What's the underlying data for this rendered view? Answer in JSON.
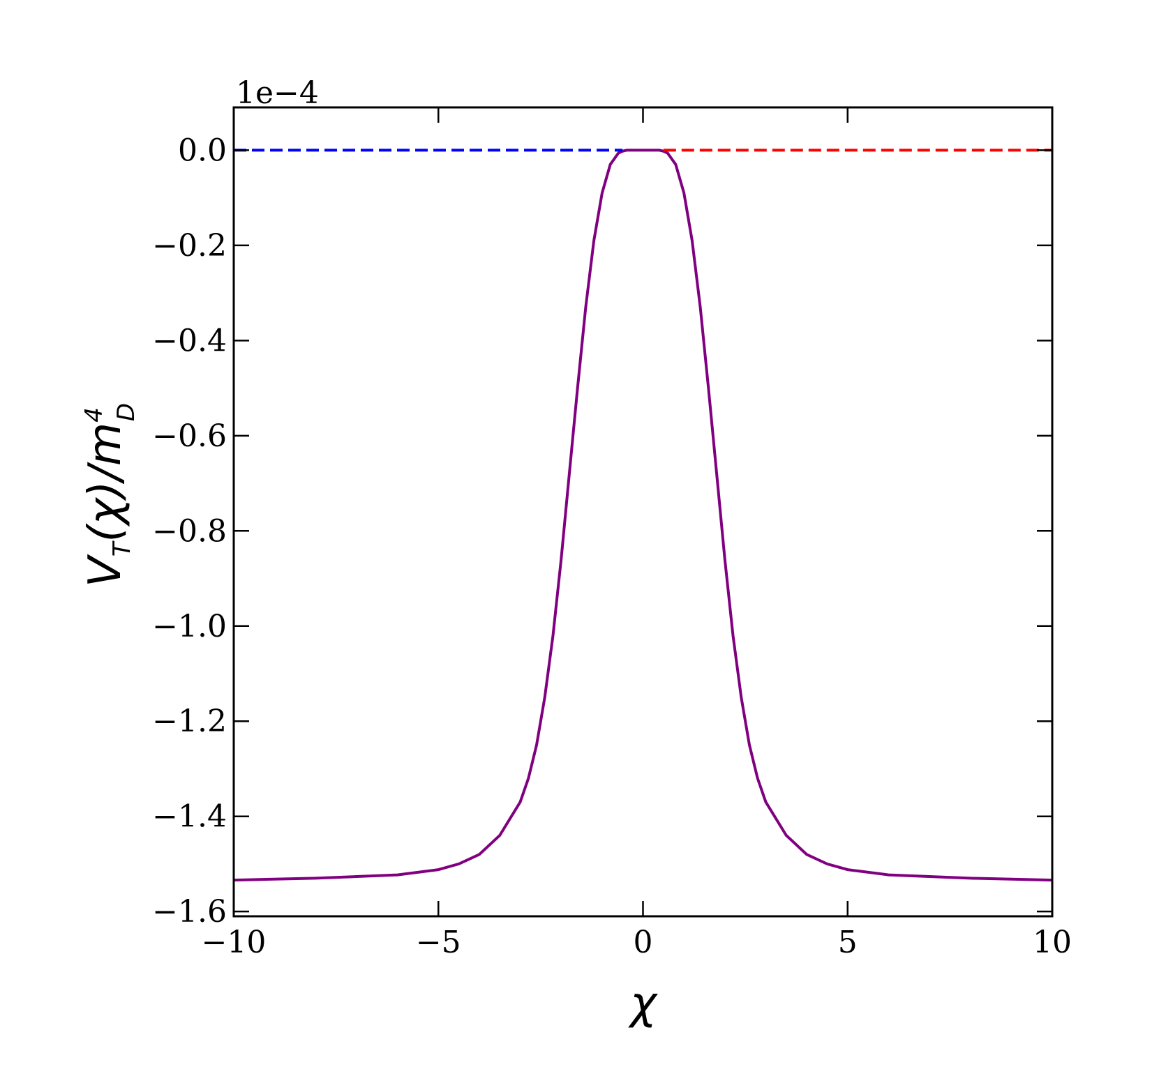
{
  "chart_data": {
    "type": "line",
    "xlabel": "χ",
    "ylabel": {
      "main": "V",
      "main_subscript": "T",
      "arg": "(χ)/m",
      "power": "4",
      "power_subscript": "D"
    },
    "offset_text": "1e−4",
    "xlim": [
      -10,
      10
    ],
    "ylim": [
      -1.61,
      0.09
    ],
    "y_scale_factor": 0.0001,
    "x_ticks": [
      -10,
      -5,
      0,
      5,
      10
    ],
    "x_tick_labels": [
      "−10",
      "−5",
      "0",
      "5",
      "10"
    ],
    "y_ticks": [
      0.0,
      -0.2,
      -0.4,
      -0.6,
      -0.8,
      -1.0,
      -1.2,
      -1.4,
      -1.6
    ],
    "y_tick_labels": [
      "0.0",
      "−0.2",
      "−0.4",
      "−0.6",
      "−0.8",
      "−1.0",
      "−1.2",
      "−1.4",
      "−1.6"
    ],
    "grid": false,
    "series": [
      {
        "style": "solid",
        "color": "#800080",
        "x": [
          -10,
          -8,
          -6,
          -5,
          -4.5,
          -4,
          -3.5,
          -3,
          -2.8,
          -2.6,
          -2.4,
          -2.2,
          -2.0,
          -1.8,
          -1.6,
          -1.4,
          -1.2,
          -1.0,
          -0.8,
          -0.6,
          -0.5,
          -0.4,
          -0.3,
          0,
          0.3,
          0.4,
          0.5,
          0.6,
          0.8,
          1.0,
          1.2,
          1.4,
          1.6,
          1.8,
          2.0,
          2.2,
          2.4,
          2.6,
          2.8,
          3.0,
          3.5,
          4,
          4.5,
          5,
          6,
          8,
          10
        ],
        "y": [
          -1.534,
          -1.53,
          -1.523,
          -1.512,
          -1.5,
          -1.48,
          -1.44,
          -1.37,
          -1.32,
          -1.25,
          -1.15,
          -1.02,
          -0.86,
          -0.68,
          -0.5,
          -0.33,
          -0.19,
          -0.09,
          -0.03,
          -0.006,
          -0.002,
          0.0,
          0.0,
          0.0,
          0.0,
          0.0,
          -0.002,
          -0.006,
          -0.03,
          -0.09,
          -0.19,
          -0.33,
          -0.5,
          -0.68,
          -0.86,
          -1.02,
          -1.15,
          -1.25,
          -1.32,
          -1.37,
          -1.44,
          -1.48,
          -1.5,
          -1.512,
          -1.523,
          -1.53,
          -1.534
        ]
      },
      {
        "style": "dashed",
        "color": "#0000ff",
        "x": [
          -10,
          -0.5
        ],
        "y": [
          0.0,
          0.0
        ]
      },
      {
        "style": "dashed",
        "color": "#ff0000",
        "x": [
          0.5,
          10
        ],
        "y": [
          0.0,
          0.0
        ]
      }
    ]
  }
}
